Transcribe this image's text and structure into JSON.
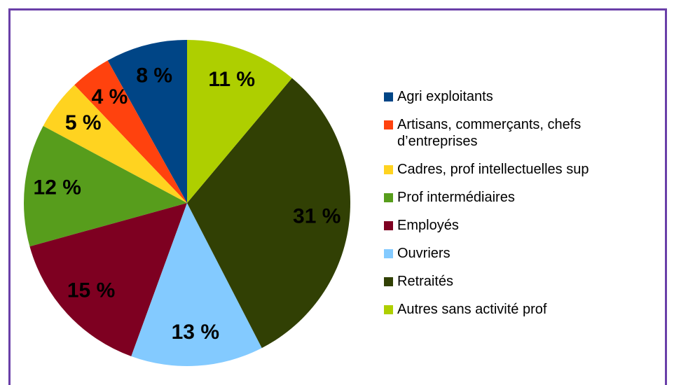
{
  "chart_data": {
    "type": "pie",
    "categories": [
      "Agri exploitants",
      "Artisans, commerçants, chefs d’entreprises",
      "Cadres, prof intellectuelles sup",
      "Prof intermédiaires",
      "Employés",
      "Ouvriers",
      "Retraités",
      "Autres sans activité prof"
    ],
    "values": [
      8,
      4,
      5,
      12,
      15,
      13,
      31,
      11
    ],
    "value_labels": [
      "8 %",
      "4 %",
      "5 %",
      "12 %",
      "15 %",
      "13 %",
      "31 %",
      "11 %"
    ],
    "colors": [
      "#004586",
      "#ff420e",
      "#ffd320",
      "#579d1c",
      "#7e0021",
      "#83caff",
      "#314004",
      "#aecf00"
    ],
    "legend": "right"
  }
}
